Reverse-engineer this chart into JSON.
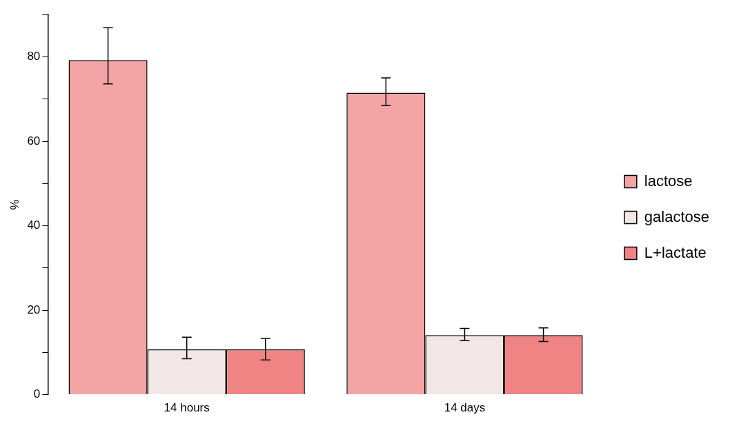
{
  "chart_data": {
    "type": "bar",
    "ylabel": "%",
    "categories": [
      "14 hours",
      "14 days"
    ],
    "series": [
      {
        "name": "lactose",
        "color": "#f4a4a4",
        "values": [
          79.2,
          71.5
        ],
        "errors": [
          [
            73.6,
            86.9
          ],
          [
            68.5,
            75.0
          ]
        ]
      },
      {
        "name": "galactose",
        "color": "#f3e6e6",
        "values": [
          10.7,
          14.1
        ],
        "errors": [
          [
            8.5,
            13.6
          ],
          [
            12.8,
            15.7
          ]
        ]
      },
      {
        "name": "L+lactate",
        "color": "#f08484",
        "values": [
          10.7,
          14.1
        ],
        "errors": [
          [
            8.2,
            13.3
          ],
          [
            12.6,
            15.8
          ]
        ]
      }
    ],
    "ylim": [
      0,
      90
    ],
    "yticks": [
      0,
      {
        "value": 10,
        "label": null
      },
      20,
      {
        "value": 30,
        "label": null
      },
      40,
      {
        "value": 50,
        "label": null
      },
      60,
      {
        "value": 70,
        "label": null
      },
      80,
      {
        "value": 90,
        "label": null
      }
    ],
    "grid": false,
    "legend": "right"
  }
}
